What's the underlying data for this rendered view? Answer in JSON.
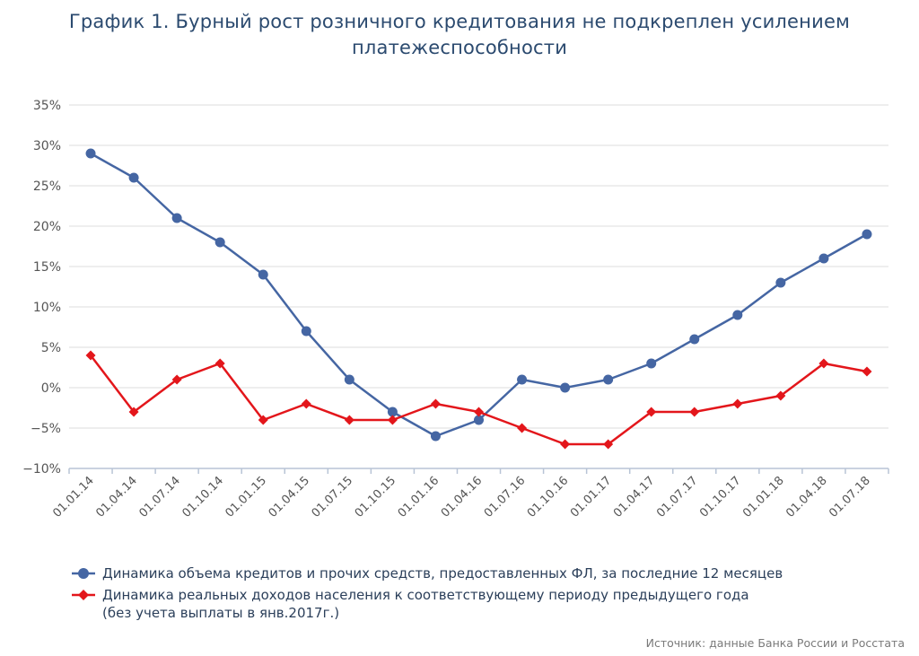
{
  "title_lines": [
    "График 1. Бурный рост розничного кредитования не подкреплен усилением",
    "платежеспособности"
  ],
  "chart_data": {
    "type": "line",
    "title": "График 1. Бурный рост розничного кредитования не подкреплен усилением платежеспособности",
    "categories": [
      "01.01.14",
      "01.04.14",
      "01.07.14",
      "01.10.14",
      "01.01.15",
      "01.04.15",
      "01.07.15",
      "01.10.15",
      "01.01.16",
      "01.04.16",
      "01.07.16",
      "01.10.16",
      "01.01.17",
      "01.04.17",
      "01.07.17",
      "01.10.17",
      "01.01.18",
      "01.04.18",
      "01.07.18"
    ],
    "ylim": [
      -10,
      35
    ],
    "yticks": [
      -10,
      -5,
      0,
      5,
      10,
      15,
      20,
      25,
      30,
      35
    ],
    "ytick_labels": [
      "−10%",
      "−5%",
      "0%",
      "5%",
      "10%",
      "15%",
      "20%",
      "25%",
      "30%",
      "35%"
    ],
    "grid": true,
    "legend_position": "bottom",
    "series": [
      {
        "name": "Динамика объема кредитов и прочих средств, предоставленных ФЛ, за последние 12 месяцев",
        "color": "#4566a3",
        "marker": "circle",
        "values": [
          29,
          26,
          21,
          18,
          14,
          7,
          1,
          -3,
          -6,
          -4,
          1,
          0,
          1,
          3,
          6,
          9,
          13,
          16,
          19
        ]
      },
      {
        "name": "Динамика реальных доходов населения к соответствующему периоду предыдущего года (без учета выплаты в янв.2017г.)",
        "color": "#e3161b",
        "marker": "diamond",
        "values": [
          4,
          -3,
          1,
          3,
          -4,
          -2,
          -4,
          -4,
          -2,
          -3,
          -5,
          -7,
          -7,
          -3,
          -3,
          -2,
          -1,
          3,
          2
        ]
      }
    ]
  },
  "legend": {
    "item1_text": "Динамика объема кредитов и прочих средств, предоставленных ФЛ, за последние 12 месяцев",
    "item2_line1": "Динамика реальных доходов населения к соответствующему периоду предыдущего года",
    "item2_line2": "(без учета выплаты в янв.2017г.)"
  },
  "source": "Источник: данные Банка России и Росстата"
}
